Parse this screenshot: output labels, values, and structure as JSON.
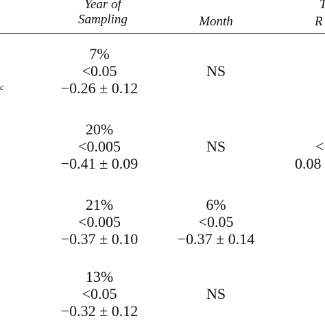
{
  "header": {
    "year_line1": "Year of",
    "year_line2": "Sampling",
    "month": "Month",
    "clipped_line1": "T",
    "clipped_line2": "R"
  },
  "row_label_fragment": "c",
  "rows": [
    {
      "year": [
        "7%",
        "<0.05",
        "−0.26 ± 0.12"
      ],
      "month": "NS"
    },
    {
      "year": [
        "20%",
        "<0.005",
        "−0.41 ± 0.09"
      ],
      "month": "NS",
      "clipped": [
        "<",
        "0.08"
      ]
    },
    {
      "year": [
        "21%",
        "<0.005",
        "−0.37 ± 0.10"
      ],
      "month_lines": [
        "6%",
        "<0.05",
        "−0.37 ± 0.14"
      ]
    },
    {
      "year": [
        "13%",
        "<0.05",
        "−0.32 ± 0.12"
      ],
      "month": "NS"
    }
  ]
}
